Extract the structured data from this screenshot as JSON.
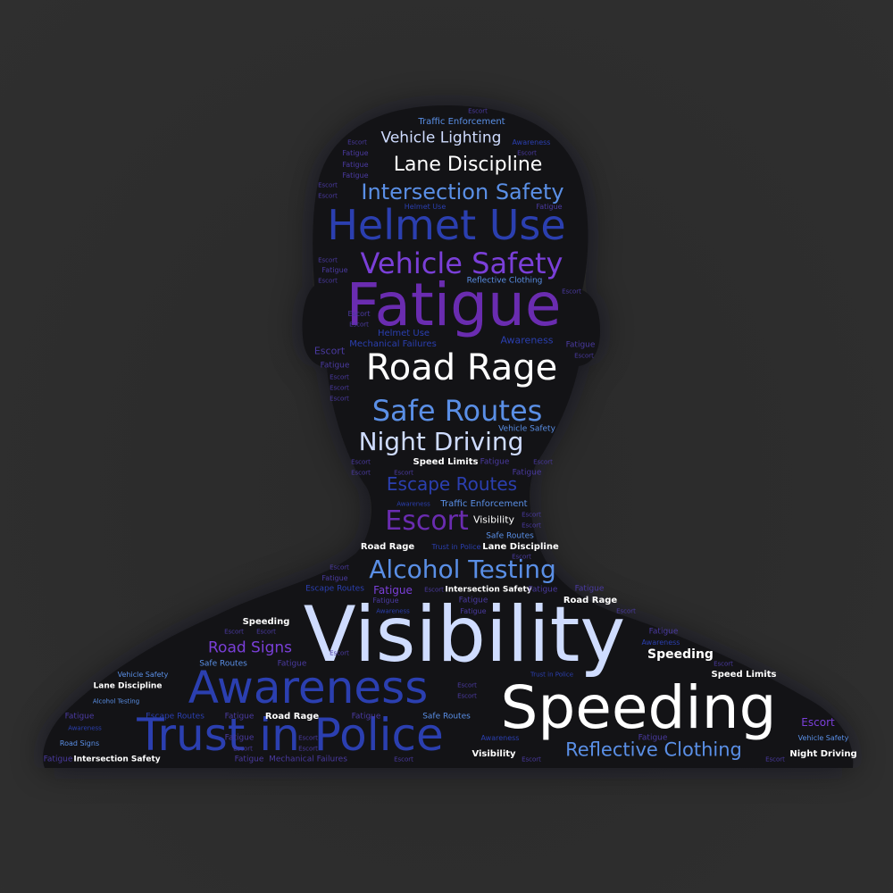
{
  "palette": {
    "white": "#ffffff",
    "pale": "#cfdcff",
    "light_blue": "#5a8fe6",
    "blue": "#2b3fb0",
    "purple": "#7a3fd8",
    "violet": "#6a2cb0",
    "dim": "#4a3aa0",
    "silhouette": "#131316",
    "background": "#2d2d2d"
  },
  "words": {
    "visibility": "Visibility",
    "speeding": "Speeding",
    "awareness": "Awareness",
    "trust_in_police": "Trust in Police",
    "fatigue": "Fatigue",
    "helmet_use": "Helmet Use",
    "road_rage": "Road Rage",
    "safe_routes": "Safe Routes",
    "vehicle_safety": "Vehicle Safety",
    "intersection_safety": "Intersection Safety",
    "lane_discipline": "Lane Discipline",
    "vehicle_lighting": "Vehicle Lighting",
    "night_driving": "Night Driving",
    "escape_routes": "Escape Routes",
    "escort": "Escort",
    "alcohol_testing": "Alcohol Testing",
    "reflective_clothing": "Reflective Clothing",
    "road_signs": "Road Signs",
    "traffic_enforcement": "Traffic Enforcement",
    "speed_limits": "Speed Limits",
    "mechanical_failures": "Mechanical Failures"
  }
}
